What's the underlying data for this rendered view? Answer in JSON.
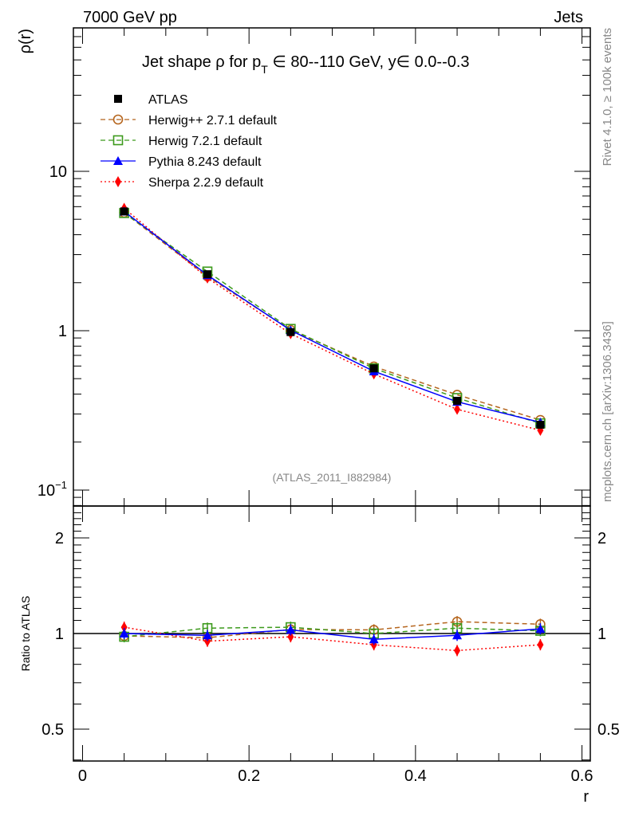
{
  "header": {
    "left": "7000 GeV pp",
    "right": "Jets"
  },
  "side_labels": {
    "rivet": "Rivet 4.1.0, ≥ 100k events",
    "mcplots": "mcplots.cern.ch [arXiv:1306.3436]"
  },
  "chart_data": [
    {
      "type": "line",
      "title": "Jet shape ρ for p_T ∈ 80--110 GeV, y∈ 0.0--0.3",
      "title_parts": {
        "a": "Jet shape ρ for p",
        "sub": "T",
        "b": " ∈ 80--110 GeV, y∈ 0.0--0.3"
      },
      "ylabel": "ρ(r)",
      "yscale": "log",
      "ylim": [
        0.0794,
        79.4
      ],
      "xlim": [
        -0.011,
        0.61
      ],
      "yticks": [
        {
          "v": 10,
          "base": "10",
          "exp": ""
        },
        {
          "v": 1,
          "base": "1",
          "exp": ""
        },
        {
          "v": 0.1,
          "base": "10",
          "exp": "−1"
        }
      ],
      "annotation": "(ATLAS_2011_I882984)",
      "legend_position": "top-left",
      "x": [
        0.05,
        0.15,
        0.25,
        0.35,
        0.45,
        0.55
      ],
      "series": [
        {
          "name": "ATLAS",
          "color": "#000000",
          "marker": "square-filled",
          "line": "none",
          "values": [
            5.6,
            2.26,
            0.98,
            0.58,
            0.363,
            0.257
          ]
        },
        {
          "name": "Herwig++ 2.7.1 default",
          "color": "#b5651d",
          "marker": "circle-open",
          "line": "dashed",
          "values": [
            5.5,
            2.19,
            1.01,
            0.596,
            0.396,
            0.275
          ]
        },
        {
          "name": "Herwig 7.2.1 default",
          "color": "#3c9a1c",
          "marker": "square-open",
          "line": "dashed",
          "values": [
            5.47,
            2.35,
            1.026,
            0.58,
            0.378,
            0.262
          ]
        },
        {
          "name": "Pythia 8.243 default",
          "color": "#0000ff",
          "marker": "triangle-filled",
          "line": "solid",
          "values": [
            5.6,
            2.23,
            1.006,
            0.556,
            0.358,
            0.266
          ]
        },
        {
          "name": "Sherpa 2.2.9 default",
          "color": "#ff0000",
          "marker": "diamond-filled",
          "line": "dotted",
          "values": [
            5.86,
            2.14,
            0.957,
            0.535,
            0.321,
            0.237
          ]
        }
      ]
    },
    {
      "type": "line",
      "ylabel": "Ratio to ATLAS",
      "xlabel": "r",
      "yscale": "log",
      "ylim": [
        0.397,
        2.52
      ],
      "xlim": [
        -0.011,
        0.61
      ],
      "yticks": [
        {
          "v": 2,
          "label": "2"
        },
        {
          "v": 1,
          "label": "1"
        },
        {
          "v": 0.5,
          "label": "0.5"
        }
      ],
      "xticks": [
        {
          "v": 0,
          "label": "0"
        },
        {
          "v": 0.2,
          "label": "0.2"
        },
        {
          "v": 0.4,
          "label": "0.4"
        },
        {
          "v": 0.6,
          "label": "0.6"
        }
      ],
      "x": [
        0.05,
        0.15,
        0.25,
        0.35,
        0.45,
        0.55
      ],
      "series": [
        {
          "name": "Herwig++ 2.7.1 default",
          "values": [
            0.983,
            0.97,
            1.03,
            1.027,
            1.09,
            1.07
          ]
        },
        {
          "name": "Herwig 7.2.1 default",
          "values": [
            0.977,
            1.04,
            1.047,
            1.0,
            1.04,
            1.02
          ]
        },
        {
          "name": "Pythia 8.243 default",
          "values": [
            1.0,
            0.987,
            1.027,
            0.959,
            0.987,
            1.035
          ]
        },
        {
          "name": "Sherpa 2.2.9 default",
          "values": [
            1.047,
            0.946,
            0.977,
            0.922,
            0.884,
            0.922
          ]
        }
      ]
    }
  ]
}
